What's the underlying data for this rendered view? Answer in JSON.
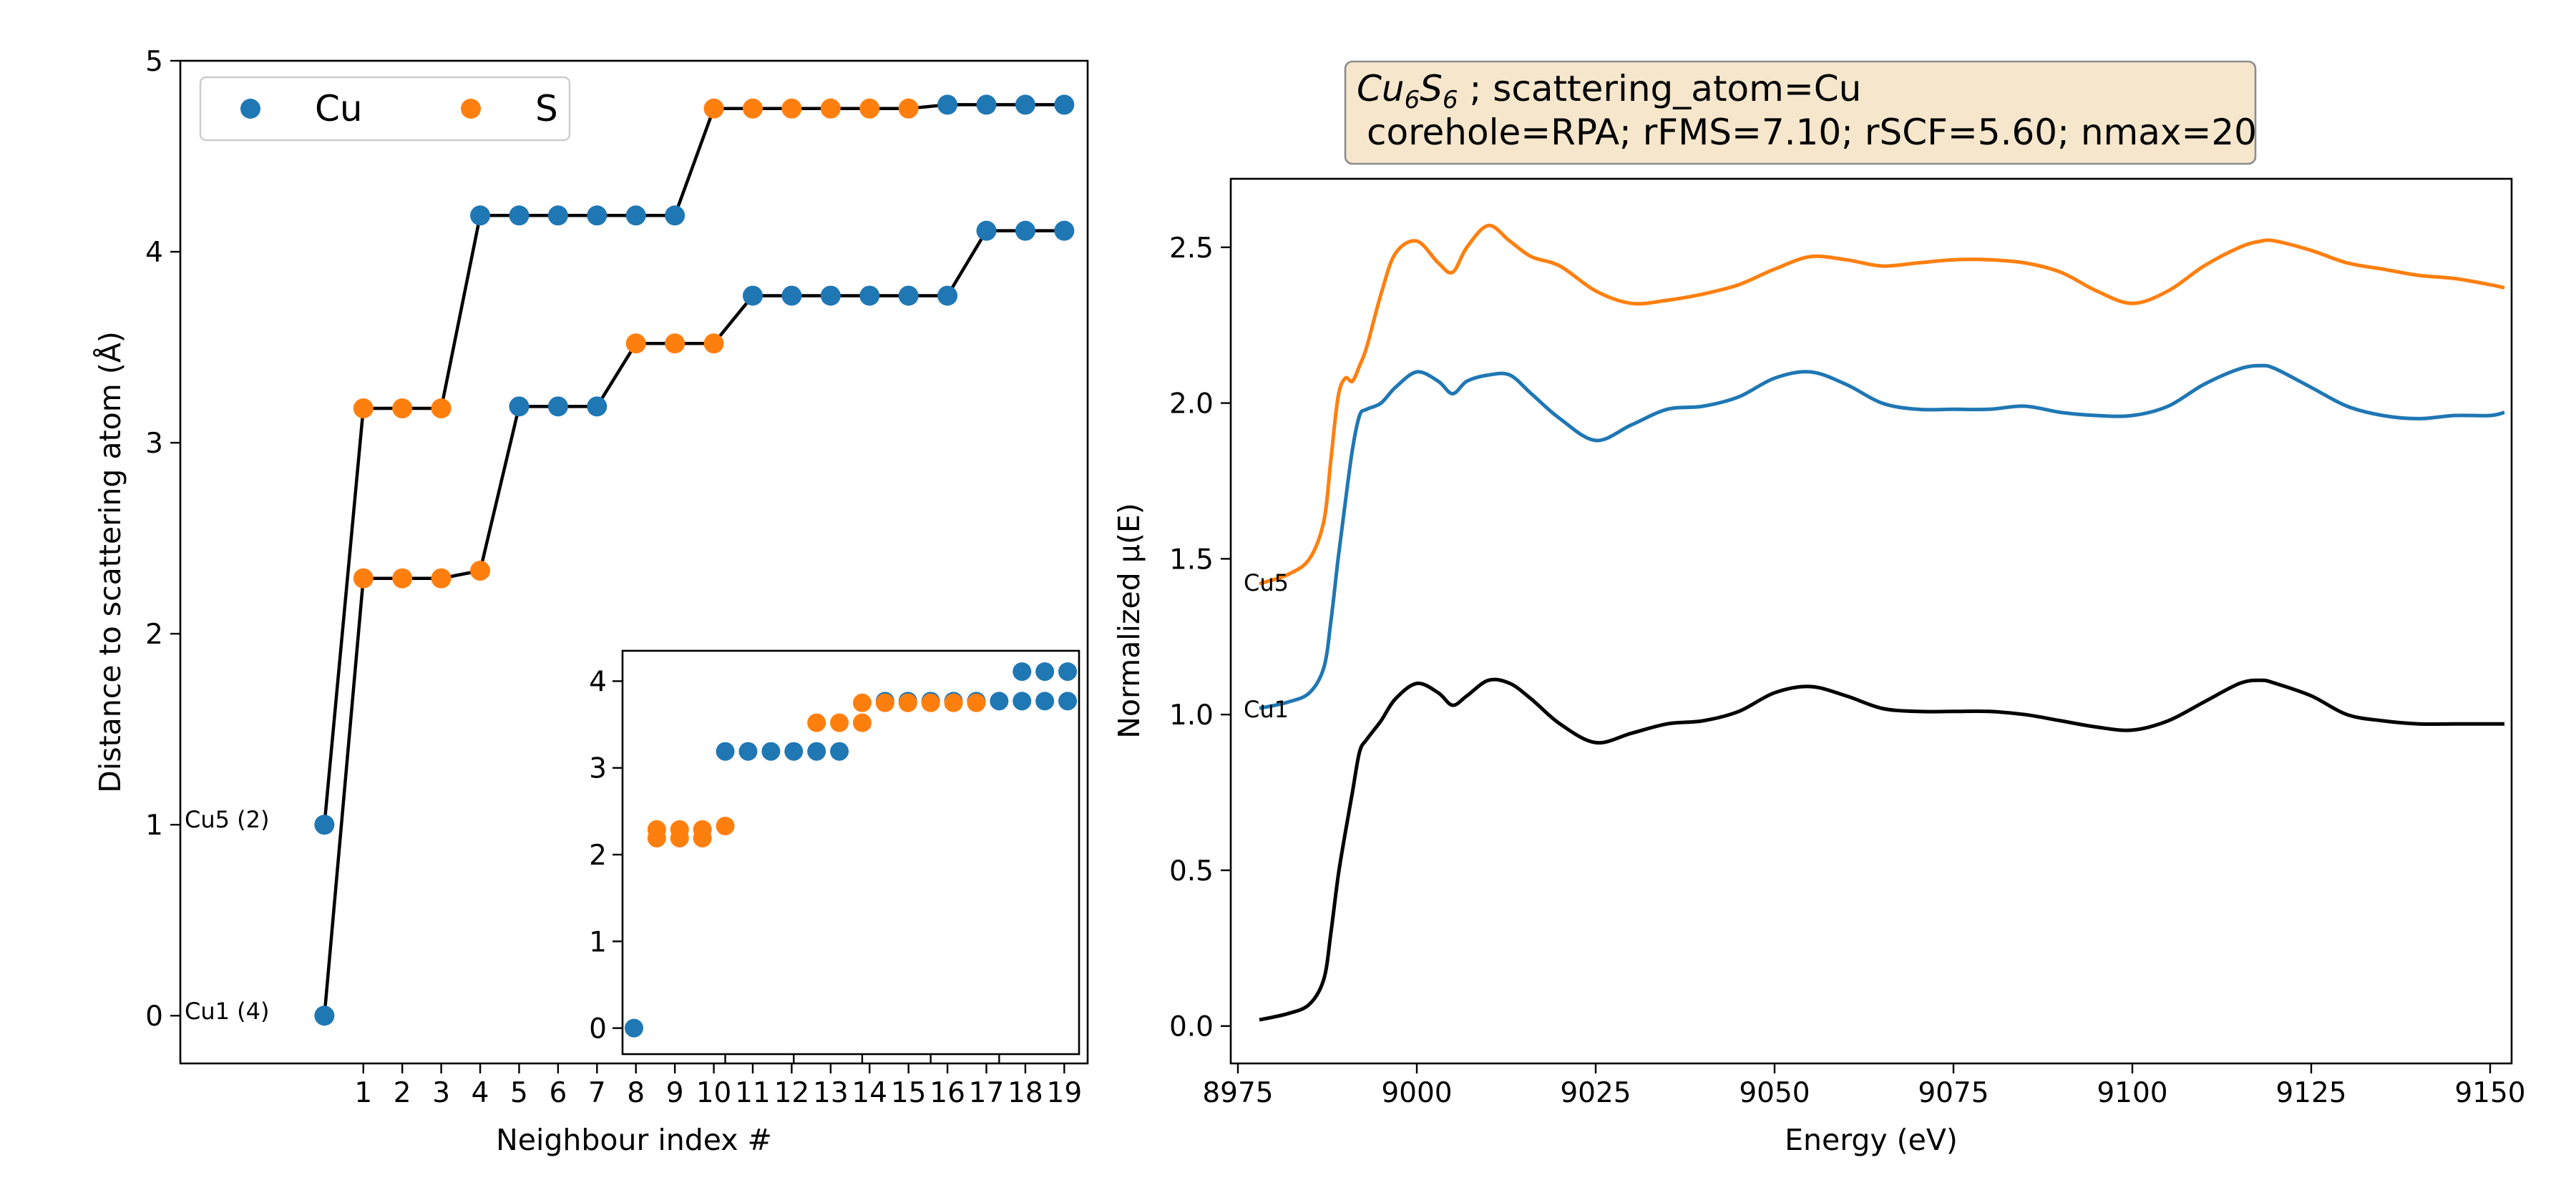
{
  "colors": {
    "cu": "#1f77b4",
    "s": "#ff7f0e",
    "line": "#000000",
    "title_box_fill": "#f5e6cc",
    "title_box_edge": "#8c8c8c"
  },
  "chart_data": [
    {
      "type": "scatter",
      "panel": "neighbours",
      "xlabel": "Neighbour index #",
      "ylabel": "Distance to scattering atom (Å)",
      "xlim": [
        -3.7,
        19.6
      ],
      "ylim": [
        -0.25,
        5.0
      ],
      "xticks": [
        1,
        2,
        3,
        4,
        5,
        6,
        7,
        8,
        9,
        10,
        11,
        12,
        13,
        14,
        15,
        16,
        17,
        18,
        19
      ],
      "yticks": [
        0,
        1,
        2,
        3,
        4,
        5
      ],
      "legend": {
        "position": "top-left",
        "entries": [
          {
            "label": "Cu",
            "key": "cu"
          },
          {
            "label": "S",
            "key": "s"
          }
        ]
      },
      "annotations": [
        {
          "text": "Cu5 (2)",
          "anchor_series": "cu5"
        },
        {
          "text": "Cu1 (4)",
          "anchor_series": "cu1"
        }
      ],
      "series": [
        {
          "key": "cu1",
          "x": [
            0,
            1,
            2,
            3,
            4,
            5,
            6,
            7,
            8,
            9,
            10,
            11,
            12,
            13,
            14,
            15,
            16,
            17,
            18,
            19
          ],
          "y": [
            0,
            2.29,
            2.29,
            2.29,
            2.33,
            3.19,
            3.19,
            3.19,
            3.52,
            3.52,
            3.52,
            3.77,
            3.77,
            3.77,
            3.77,
            3.77,
            3.77,
            4.11,
            4.11,
            4.11
          ],
          "species": [
            "cu",
            "s",
            "s",
            "s",
            "s",
            "cu",
            "cu",
            "cu",
            "s",
            "s",
            "s",
            "cu",
            "cu",
            "cu",
            "cu",
            "cu",
            "cu",
            "cu",
            "cu",
            "cu"
          ]
        },
        {
          "key": "cu5",
          "x": [
            0,
            1,
            2,
            3,
            4,
            5,
            6,
            7,
            8,
            9,
            10,
            11,
            12,
            13,
            14,
            15,
            16,
            17,
            18,
            19
          ],
          "y": [
            1.0,
            3.18,
            3.18,
            3.18,
            4.19,
            4.19,
            4.19,
            4.19,
            4.19,
            4.19,
            4.75,
            4.75,
            4.75,
            4.75,
            4.75,
            4.75,
            4.77,
            4.77,
            4.77,
            4.77
          ],
          "species": [
            "cu",
            "s",
            "s",
            "s",
            "cu",
            "cu",
            "cu",
            "cu",
            "cu",
            "cu",
            "s",
            "s",
            "s",
            "s",
            "s",
            "s",
            "cu",
            "cu",
            "cu",
            "cu"
          ]
        }
      ]
    },
    {
      "type": "scatter",
      "panel": "inset",
      "xlim": [
        -0.5,
        19.5
      ],
      "ylim": [
        -0.3,
        4.35
      ],
      "yticks": [
        0,
        1,
        2,
        3,
        4
      ],
      "points": [
        {
          "x": 0,
          "y": 0,
          "s": "cu"
        },
        {
          "x": 1,
          "y": 2.19,
          "s": "s"
        },
        {
          "x": 1,
          "y": 2.29,
          "s": "s"
        },
        {
          "x": 2,
          "y": 2.19,
          "s": "s"
        },
        {
          "x": 2,
          "y": 2.29,
          "s": "s"
        },
        {
          "x": 3,
          "y": 2.19,
          "s": "s"
        },
        {
          "x": 3,
          "y": 2.29,
          "s": "s"
        },
        {
          "x": 4,
          "y": 2.33,
          "s": "s"
        },
        {
          "x": 4,
          "y": 3.19,
          "s": "cu"
        },
        {
          "x": 5,
          "y": 3.19,
          "s": "cu"
        },
        {
          "x": 6,
          "y": 3.19,
          "s": "cu"
        },
        {
          "x": 7,
          "y": 3.19,
          "s": "cu"
        },
        {
          "x": 8,
          "y": 3.19,
          "s": "cu"
        },
        {
          "x": 9,
          "y": 3.19,
          "s": "cu"
        },
        {
          "x": 8,
          "y": 3.52,
          "s": "s"
        },
        {
          "x": 9,
          "y": 3.52,
          "s": "s"
        },
        {
          "x": 10,
          "y": 3.52,
          "s": "s"
        },
        {
          "x": 11,
          "y": 3.77,
          "s": "cu"
        },
        {
          "x": 12,
          "y": 3.77,
          "s": "cu"
        },
        {
          "x": 13,
          "y": 3.77,
          "s": "cu"
        },
        {
          "x": 14,
          "y": 3.77,
          "s": "cu"
        },
        {
          "x": 15,
          "y": 3.77,
          "s": "cu"
        },
        {
          "x": 16,
          "y": 3.77,
          "s": "cu"
        },
        {
          "x": 17,
          "y": 3.77,
          "s": "cu"
        },
        {
          "x": 18,
          "y": 3.77,
          "s": "cu"
        },
        {
          "x": 19,
          "y": 3.77,
          "s": "cu"
        },
        {
          "x": 10,
          "y": 3.75,
          "s": "s"
        },
        {
          "x": 11,
          "y": 3.75,
          "s": "s"
        },
        {
          "x": 12,
          "y": 3.75,
          "s": "s"
        },
        {
          "x": 13,
          "y": 3.75,
          "s": "s"
        },
        {
          "x": 14,
          "y": 3.75,
          "s": "s"
        },
        {
          "x": 15,
          "y": 3.75,
          "s": "s"
        },
        {
          "x": 17,
          "y": 4.11,
          "s": "cu"
        },
        {
          "x": 18,
          "y": 4.11,
          "s": "cu"
        },
        {
          "x": 19,
          "y": 4.11,
          "s": "cu"
        }
      ]
    },
    {
      "type": "line",
      "panel": "xanes",
      "title_formula": {
        "a": "Cu",
        "a_sub": "6",
        "b": "S",
        "b_sub": "6"
      },
      "title_line1_rest": " ; scattering_atom=Cu",
      "title_line2": "corehole=RPA; rFMS=7.10; rSCF=5.60; nmax=20",
      "xlabel": "Energy (eV)",
      "ylabel": "Normalized μ(E)",
      "xlim": [
        8974,
        9153
      ],
      "ylim": [
        -0.12,
        2.72
      ],
      "xticks": [
        8975,
        9000,
        9025,
        9050,
        9075,
        9100,
        9125,
        9150
      ],
      "yticks": [
        0.0,
        0.5,
        1.0,
        1.5,
        2.0,
        2.5
      ],
      "labels": [
        {
          "text": "Cu5",
          "series": 2
        },
        {
          "text": "Cu1",
          "series": 1
        }
      ],
      "series": [
        {
          "color_key": "line",
          "x": [
            8978,
            8982,
            8985,
            8987,
            8988,
            8989,
            8990,
            8991,
            8992,
            8993,
            8995,
            8997,
            9000,
            9003,
            9005,
            9007,
            9010,
            9013,
            9016,
            9020,
            9025,
            9030,
            9035,
            9040,
            9045,
            9050,
            9055,
            9060,
            9065,
            9070,
            9075,
            9080,
            9085,
            9090,
            9095,
            9100,
            9105,
            9110,
            9115,
            9118,
            9120,
            9125,
            9130,
            9135,
            9140,
            9145,
            9150,
            9152
          ],
          "y": [
            0.02,
            0.04,
            0.07,
            0.15,
            0.3,
            0.48,
            0.62,
            0.75,
            0.88,
            0.92,
            0.98,
            1.05,
            1.1,
            1.07,
            1.03,
            1.06,
            1.11,
            1.1,
            1.05,
            0.97,
            0.91,
            0.94,
            0.97,
            0.98,
            1.01,
            1.07,
            1.09,
            1.06,
            1.02,
            1.01,
            1.01,
            1.01,
            1.0,
            0.98,
            0.96,
            0.95,
            0.98,
            1.04,
            1.1,
            1.11,
            1.1,
            1.06,
            1.0,
            0.98,
            0.97,
            0.97,
            0.97,
            0.97
          ]
        },
        {
          "color_key": "cu",
          "x": [
            8978,
            8982,
            8985,
            8987,
            8988,
            8989,
            8990,
            8991,
            8992,
            8993,
            8995,
            8997,
            9000,
            9003,
            9005,
            9007,
            9010,
            9013,
            9016,
            9020,
            9025,
            9030,
            9035,
            9040,
            9045,
            9050,
            9055,
            9060,
            9065,
            9070,
            9075,
            9080,
            9085,
            9090,
            9095,
            9100,
            9105,
            9110,
            9115,
            9118,
            9120,
            9125,
            9130,
            9135,
            9140,
            9145,
            9150,
            9152
          ],
          "y": [
            1.02,
            1.04,
            1.07,
            1.15,
            1.3,
            1.5,
            1.68,
            1.85,
            1.96,
            1.98,
            2.0,
            2.05,
            2.1,
            2.07,
            2.03,
            2.07,
            2.09,
            2.09,
            2.03,
            1.95,
            1.88,
            1.93,
            1.98,
            1.99,
            2.02,
            2.08,
            2.1,
            2.06,
            2.0,
            1.98,
            1.98,
            1.98,
            1.99,
            1.97,
            1.96,
            1.96,
            1.99,
            2.06,
            2.11,
            2.12,
            2.11,
            2.05,
            1.99,
            1.96,
            1.95,
            1.96,
            1.96,
            1.97
          ]
        },
        {
          "color_key": "s",
          "x": [
            8978,
            8982,
            8985,
            8987,
            8988,
            8989,
            8990,
            8991,
            8992,
            8993,
            8995,
            8997,
            9000,
            9003,
            9005,
            9007,
            9010,
            9013,
            9016,
            9020,
            9025,
            9030,
            9035,
            9040,
            9045,
            9050,
            9055,
            9060,
            9065,
            9070,
            9075,
            9080,
            9085,
            9090,
            9095,
            9100,
            9105,
            9110,
            9115,
            9118,
            9120,
            9125,
            9130,
            9135,
            9140,
            9145,
            9150,
            9152
          ],
          "y": [
            1.42,
            1.45,
            1.5,
            1.62,
            1.82,
            2.02,
            2.08,
            2.07,
            2.12,
            2.18,
            2.35,
            2.48,
            2.52,
            2.45,
            2.42,
            2.5,
            2.57,
            2.52,
            2.47,
            2.44,
            2.36,
            2.32,
            2.33,
            2.35,
            2.38,
            2.43,
            2.47,
            2.46,
            2.44,
            2.45,
            2.46,
            2.46,
            2.45,
            2.42,
            2.36,
            2.32,
            2.36,
            2.44,
            2.5,
            2.52,
            2.52,
            2.49,
            2.45,
            2.43,
            2.41,
            2.4,
            2.38,
            2.37
          ]
        }
      ]
    }
  ]
}
